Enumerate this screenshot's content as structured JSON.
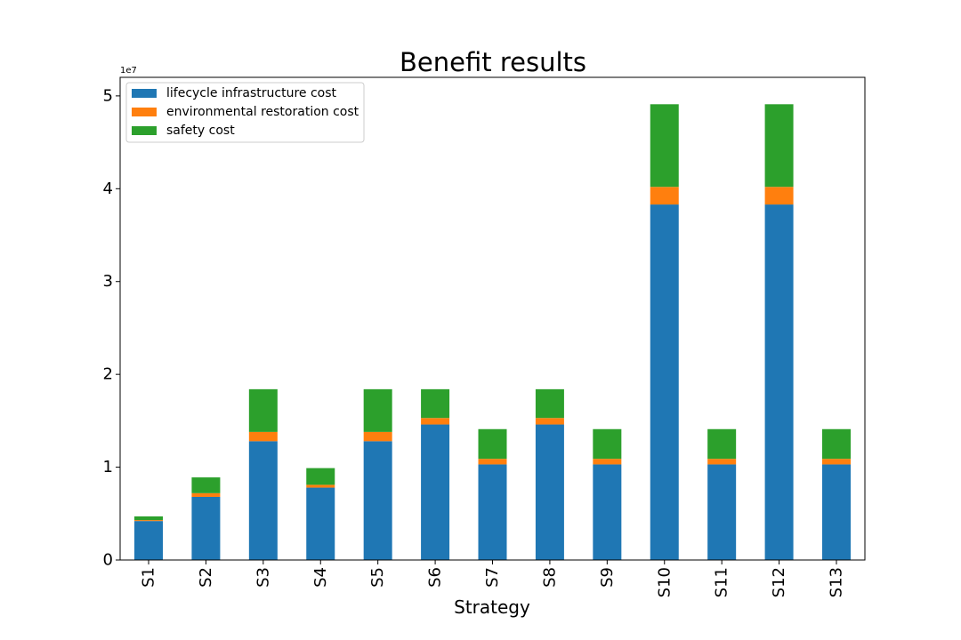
{
  "chart_data": {
    "type": "bar",
    "stacked": true,
    "title": "Benefit results",
    "xlabel": "Strategy",
    "ylabel": "",
    "y_offset_text": "1e7",
    "y_multiplier": 10000000,
    "ylim": [
      0,
      52000000
    ],
    "yticks": [
      0,
      10000000,
      20000000,
      30000000,
      40000000,
      50000000
    ],
    "ytick_labels": [
      "0",
      "1",
      "2",
      "3",
      "4",
      "5"
    ],
    "grid": false,
    "legend_position": "top-left",
    "categories": [
      "S1",
      "S2",
      "S3",
      "S4",
      "S5",
      "S6",
      "S7",
      "S8",
      "S9",
      "S10",
      "S11",
      "S12",
      "S13"
    ],
    "series": [
      {
        "name": "lifecycle infrastructure cost",
        "color": "#1f77b4",
        "values": [
          4200000,
          6800000,
          12800000,
          7800000,
          12800000,
          14600000,
          10300000,
          14600000,
          10300000,
          38300000,
          10300000,
          38300000,
          10300000
        ]
      },
      {
        "name": "environmental restoration cost",
        "color": "#ff7f0e",
        "values": [
          100000,
          400000,
          1000000,
          300000,
          1000000,
          700000,
          600000,
          700000,
          600000,
          1900000,
          600000,
          1900000,
          600000
        ]
      },
      {
        "name": "safety cost",
        "color": "#2ca02c",
        "values": [
          400000,
          1700000,
          4600000,
          1800000,
          4600000,
          3100000,
          3200000,
          3100000,
          3200000,
          8900000,
          3200000,
          8900000,
          3200000
        ]
      }
    ]
  }
}
